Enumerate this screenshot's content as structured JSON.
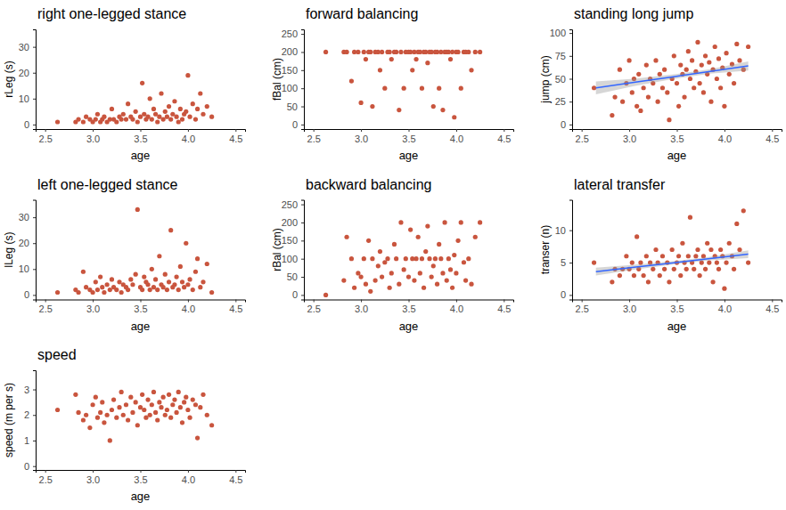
{
  "chart_data": [
    {
      "type": "scatter",
      "title": "right one-legged stance",
      "x_label": "age",
      "y_label": "rLeg (s)",
      "xlim": [
        2.4,
        4.6
      ],
      "xticks": [
        2.5,
        {
          "value": 3,
          "label": "3.0"
        },
        3.5,
        {
          "value": 4,
          "label": "4.0"
        },
        4.5
      ],
      "ylim": [
        -1.75,
        36.75
      ],
      "yticks": [
        0,
        10,
        20,
        30
      ],
      "x": [
        2.63,
        2.82,
        2.85,
        2.9,
        2.93,
        2.97,
        3.0,
        3.03,
        3.05,
        3.08,
        3.1,
        3.12,
        3.15,
        3.18,
        3.2,
        3.22,
        3.25,
        3.28,
        3.3,
        3.32,
        3.35,
        3.37,
        3.4,
        3.42,
        3.45,
        3.47,
        3.5,
        3.52,
        3.54,
        3.56,
        3.58,
        3.6,
        3.62,
        3.64,
        3.66,
        3.68,
        3.7,
        3.72,
        3.74,
        3.76,
        3.78,
        3.8,
        3.82,
        3.84,
        3.86,
        3.88,
        3.9,
        3.92,
        3.94,
        3.96,
        3.98,
        4.0,
        4.02,
        4.05,
        4.08,
        4.1,
        4.13,
        4.16,
        4.2,
        4.25
      ],
      "series": [
        {
          "type": "scatter",
          "marker": "circle",
          "color": "#c9553e",
          "values": [
            1,
            1,
            2,
            1,
            3,
            2,
            1,
            2,
            4,
            1,
            2,
            3,
            1,
            2,
            6,
            2,
            1,
            3,
            2,
            4,
            2,
            8,
            3,
            2,
            5,
            1,
            3,
            16,
            4,
            2,
            3,
            10,
            2,
            6,
            4,
            1,
            3,
            12,
            2,
            5,
            3,
            7,
            2,
            4,
            9,
            3,
            1,
            6,
            2,
            4,
            5,
            19,
            3,
            8,
            2,
            6,
            12,
            4,
            7,
            3
          ]
        }
      ]
    },
    {
      "type": "scatter",
      "title": "forward balancing",
      "x_label": "age",
      "y_label": "fBal (cm)",
      "xlim": [
        2.4,
        4.6
      ],
      "xticks": [
        2.5,
        {
          "value": 3,
          "label": "3.0"
        },
        3.5,
        {
          "value": 4,
          "label": "4.0"
        },
        4.5
      ],
      "ylim": [
        -12.5,
        262.5
      ],
      "yticks": [
        0,
        50,
        100,
        150,
        200,
        250
      ],
      "x": [
        2.63,
        2.82,
        2.85,
        2.9,
        2.93,
        2.97,
        3.0,
        3.03,
        3.05,
        3.08,
        3.1,
        3.12,
        3.15,
        3.18,
        3.2,
        3.22,
        3.25,
        3.28,
        3.3,
        3.32,
        3.35,
        3.37,
        3.4,
        3.42,
        3.45,
        3.47,
        3.5,
        3.52,
        3.54,
        3.56,
        3.58,
        3.6,
        3.62,
        3.64,
        3.66,
        3.68,
        3.7,
        3.72,
        3.74,
        3.76,
        3.78,
        3.8,
        3.82,
        3.84,
        3.86,
        3.88,
        3.9,
        3.92,
        3.94,
        3.96,
        3.98,
        4.0,
        4.02,
        4.05,
        4.08,
        4.1,
        4.13,
        4.16,
        4.2,
        4.25
      ],
      "series": [
        {
          "type": "scatter",
          "marker": "circle",
          "color": "#c9553e",
          "values": [
            200,
            200,
            200,
            120,
            200,
            200,
            60,
            200,
            180,
            200,
            200,
            50,
            200,
            200,
            150,
            200,
            100,
            200,
            200,
            180,
            200,
            200,
            40,
            200,
            100,
            200,
            200,
            200,
            150,
            200,
            180,
            200,
            200,
            100,
            200,
            200,
            170,
            200,
            200,
            50,
            200,
            200,
            100,
            200,
            40,
            200,
            200,
            200,
            180,
            200,
            20,
            200,
            200,
            100,
            200,
            200,
            200,
            150,
            200,
            200
          ]
        }
      ]
    },
    {
      "type": "scatter",
      "title": "standing long jump",
      "x_label": "age",
      "y_label": "jump (cm)",
      "xlim": [
        2.4,
        4.6
      ],
      "xticks": [
        2.5,
        {
          "value": 3,
          "label": "3.0"
        },
        3.5,
        {
          "value": 4,
          "label": "4.0"
        },
        4.5
      ],
      "ylim": [
        -5,
        104
      ],
      "yticks": [
        0,
        25,
        50,
        75,
        100
      ],
      "x": [
        2.63,
        2.82,
        2.85,
        2.9,
        2.93,
        2.97,
        3.0,
        3.03,
        3.05,
        3.08,
        3.1,
        3.12,
        3.15,
        3.18,
        3.2,
        3.22,
        3.25,
        3.28,
        3.3,
        3.32,
        3.35,
        3.37,
        3.4,
        3.42,
        3.45,
        3.47,
        3.5,
        3.52,
        3.54,
        3.56,
        3.58,
        3.6,
        3.62,
        3.64,
        3.66,
        3.68,
        3.7,
        3.72,
        3.74,
        3.76,
        3.78,
        3.8,
        3.82,
        3.84,
        3.86,
        3.88,
        3.9,
        3.92,
        3.94,
        3.96,
        3.98,
        4.0,
        4.02,
        4.05,
        4.08,
        4.1,
        4.13,
        4.16,
        4.2,
        4.25
      ],
      "series": [
        {
          "type": "scatter",
          "marker": "circle",
          "color": "#c9553e",
          "values": [
            40,
            10,
            30,
            60,
            25,
            45,
            70,
            35,
            50,
            20,
            55,
            15,
            40,
            65,
            30,
            50,
            45,
            70,
            25,
            55,
            40,
            60,
            35,
            5,
            50,
            75,
            45,
            20,
            65,
            55,
            30,
            60,
            80,
            50,
            70,
            40,
            58,
            90,
            45,
            65,
            35,
            75,
            55,
            68,
            25,
            60,
            85,
            50,
            72,
            40,
            62,
            20,
            78,
            55,
            66,
            45,
            88,
            70,
            60,
            85
          ]
        },
        {
          "type": "line",
          "line_style": "solid",
          "color": "#3366ff",
          "x": [
            2.65,
            3.05,
            3.45,
            3.85,
            4.25
          ],
          "values": [
            40,
            46,
            52,
            58,
            64
          ],
          "lower": [
            33,
            42,
            49.5,
            55.5,
            59
          ],
          "upper": [
            47,
            50,
            54.5,
            60.5,
            69
          ]
        }
      ]
    },
    {
      "type": "scatter",
      "title": "left one-legged stance",
      "x_label": "age",
      "y_label": "lLeg (s)",
      "xlim": [
        2.4,
        4.6
      ],
      "xticks": [
        2.5,
        {
          "value": 3,
          "label": "3.0"
        },
        3.5,
        {
          "value": 4,
          "label": "4.0"
        },
        4.5
      ],
      "ylim": [
        -1.75,
        36.75
      ],
      "yticks": [
        0,
        10,
        20,
        30
      ],
      "x": [
        2.63,
        2.82,
        2.85,
        2.9,
        2.93,
        2.97,
        3.0,
        3.03,
        3.05,
        3.08,
        3.1,
        3.12,
        3.15,
        3.18,
        3.2,
        3.22,
        3.25,
        3.28,
        3.3,
        3.32,
        3.35,
        3.37,
        3.4,
        3.42,
        3.45,
        3.47,
        3.5,
        3.52,
        3.54,
        3.56,
        3.58,
        3.6,
        3.62,
        3.64,
        3.66,
        3.68,
        3.7,
        3.72,
        3.74,
        3.76,
        3.78,
        3.8,
        3.82,
        3.84,
        3.86,
        3.88,
        3.9,
        3.92,
        3.94,
        3.96,
        3.98,
        4.0,
        4.02,
        4.05,
        4.08,
        4.1,
        4.13,
        4.16,
        4.2,
        4.25
      ],
      "series": [
        {
          "type": "scatter",
          "marker": "circle",
          "color": "#c9553e",
          "values": [
            1,
            2,
            1,
            9,
            3,
            2,
            1,
            5,
            2,
            7,
            3,
            1,
            4,
            2,
            6,
            3,
            2,
            5,
            1,
            4,
            3,
            2,
            6,
            4,
            8,
            33,
            3,
            2,
            7,
            5,
            4,
            2,
            10,
            3,
            6,
            2,
            15,
            4,
            3,
            8,
            2,
            5,
            25,
            3,
            4,
            7,
            2,
            11,
            5,
            3,
            20,
            4,
            6,
            2,
            9,
            14,
            3,
            5,
            12,
            1
          ]
        }
      ]
    },
    {
      "type": "scatter",
      "title": "backward balancing",
      "x_label": "age",
      "y_label": "rBal (cm)",
      "xlim": [
        2.4,
        4.6
      ],
      "xticks": [
        2.5,
        {
          "value": 3,
          "label": "3.0"
        },
        3.5,
        {
          "value": 4,
          "label": "4.0"
        },
        4.5
      ],
      "ylim": [
        -12.5,
        262.5
      ],
      "yticks": [
        0,
        50,
        100,
        150,
        200,
        250
      ],
      "x": [
        2.63,
        2.82,
        2.85,
        2.9,
        2.93,
        2.97,
        3.0,
        3.03,
        3.05,
        3.08,
        3.1,
        3.12,
        3.15,
        3.18,
        3.2,
        3.22,
        3.25,
        3.28,
        3.3,
        3.32,
        3.35,
        3.37,
        3.4,
        3.42,
        3.45,
        3.47,
        3.5,
        3.52,
        3.54,
        3.56,
        3.58,
        3.6,
        3.62,
        3.64,
        3.66,
        3.68,
        3.7,
        3.72,
        3.74,
        3.76,
        3.78,
        3.8,
        3.82,
        3.84,
        3.86,
        3.88,
        3.9,
        3.92,
        3.94,
        3.96,
        3.98,
        4.0,
        4.02,
        4.05,
        4.08,
        4.1,
        4.13,
        4.16,
        4.2,
        4.25
      ],
      "series": [
        {
          "type": "scatter",
          "marker": "circle",
          "color": "#c9553e",
          "values": [
            0,
            40,
            160,
            100,
            20,
            60,
            50,
            100,
            30,
            150,
            10,
            100,
            40,
            80,
            120,
            50,
            90,
            100,
            20,
            60,
            140,
            100,
            30,
            200,
            70,
            100,
            50,
            180,
            100,
            40,
            100,
            160,
            60,
            100,
            20,
            120,
            190,
            100,
            50,
            80,
            100,
            30,
            140,
            100,
            60,
            200,
            40,
            100,
            70,
            20,
            110,
            60,
            150,
            200,
            90,
            40,
            100,
            30,
            160,
            200
          ]
        }
      ]
    },
    {
      "type": "scatter",
      "title": "lateral transfer",
      "x_label": "age",
      "y_label": "transer (n)",
      "xlim": [
        2.4,
        4.6
      ],
      "xticks": [
        2.5,
        {
          "value": 3,
          "label": "3.0"
        },
        3.5,
        {
          "value": 4,
          "label": "4.0"
        },
        4.5
      ],
      "ylim": [
        -0.7,
        14.7
      ],
      "yticks": [
        0,
        5,
        10
      ],
      "x": [
        2.63,
        2.82,
        2.85,
        2.9,
        2.93,
        2.97,
        3.0,
        3.03,
        3.05,
        3.08,
        3.1,
        3.12,
        3.15,
        3.18,
        3.2,
        3.22,
        3.25,
        3.28,
        3.3,
        3.32,
        3.35,
        3.37,
        3.4,
        3.42,
        3.45,
        3.47,
        3.5,
        3.52,
        3.54,
        3.56,
        3.58,
        3.6,
        3.62,
        3.64,
        3.66,
        3.68,
        3.7,
        3.72,
        3.74,
        3.76,
        3.78,
        3.8,
        3.82,
        3.84,
        3.86,
        3.88,
        3.9,
        3.92,
        3.94,
        3.96,
        3.98,
        4.0,
        4.02,
        4.05,
        4.08,
        4.1,
        4.13,
        4.16,
        4.2,
        4.25
      ],
      "series": [
        {
          "type": "scatter",
          "marker": "circle",
          "color": "#c9553e",
          "values": [
            5,
            2,
            4,
            3,
            4,
            6,
            4,
            5,
            3,
            9,
            4,
            5,
            3,
            6,
            2,
            5,
            4,
            7,
            5,
            3,
            6,
            4,
            5,
            2,
            7,
            4,
            5,
            6,
            3,
            8,
            5,
            4,
            6,
            12,
            5,
            4,
            6,
            7,
            3,
            5,
            6,
            4,
            8,
            5,
            7,
            2,
            6,
            5,
            4,
            7,
            6,
            1,
            5,
            8,
            6,
            4,
            11,
            7,
            13,
            5
          ]
        },
        {
          "type": "line",
          "line_style": "solid",
          "color": "#3366ff",
          "x": [
            2.65,
            3.05,
            3.45,
            3.85,
            4.25
          ],
          "values": [
            3.6,
            4.28,
            4.95,
            5.63,
            6.3
          ],
          "lower": [
            3.0,
            3.9,
            4.7,
            5.35,
            5.7
          ],
          "upper": [
            4.2,
            4.65,
            5.2,
            5.9,
            6.9
          ]
        }
      ]
    },
    {
      "type": "scatter",
      "title": "speed",
      "x_label": "age",
      "y_label": "speed (m per s)",
      "xlim": [
        2.4,
        4.6
      ],
      "xticks": [
        2.5,
        {
          "value": 3,
          "label": "3.0"
        },
        3.5,
        {
          "value": 4,
          "label": "4.0"
        },
        4.5
      ],
      "ylim": [
        -0.15,
        3.75
      ],
      "yticks": [
        0,
        1,
        2,
        3
      ],
      "x": [
        2.63,
        2.82,
        2.85,
        2.9,
        2.93,
        2.97,
        3.0,
        3.03,
        3.05,
        3.08,
        3.1,
        3.12,
        3.15,
        3.18,
        3.2,
        3.22,
        3.25,
        3.28,
        3.3,
        3.32,
        3.35,
        3.37,
        3.4,
        3.42,
        3.45,
        3.47,
        3.5,
        3.52,
        3.54,
        3.56,
        3.58,
        3.6,
        3.62,
        3.64,
        3.66,
        3.68,
        3.7,
        3.72,
        3.74,
        3.76,
        3.78,
        3.8,
        3.82,
        3.84,
        3.86,
        3.88,
        3.9,
        3.92,
        3.94,
        3.96,
        3.98,
        4.0,
        4.02,
        4.05,
        4.08,
        4.1,
        4.13,
        4.16,
        4.2,
        4.25
      ],
      "series": [
        {
          "type": "scatter",
          "marker": "circle",
          "color": "#c9553e",
          "values": [
            2.2,
            2.8,
            2.1,
            1.8,
            2.0,
            1.5,
            2.4,
            2.7,
            1.9,
            2.1,
            2.5,
            1.7,
            2.0,
            1.0,
            2.2,
            2.6,
            1.9,
            2.3,
            2.9,
            2.0,
            2.4,
            1.8,
            2.7,
            2.1,
            2.5,
            1.6,
            2.3,
            2.8,
            2.2,
            1.9,
            2.6,
            2.0,
            2.4,
            2.9,
            2.1,
            1.8,
            2.5,
            2.3,
            2.7,
            2.0,
            2.2,
            2.8,
            1.9,
            2.4,
            2.6,
            2.1,
            2.9,
            2.3,
            1.7,
            2.5,
            2.7,
            2.2,
            1.9,
            2.6,
            2.4,
            1.1,
            2.3,
            2.8,
            2.0,
            1.6
          ]
        }
      ]
    }
  ]
}
